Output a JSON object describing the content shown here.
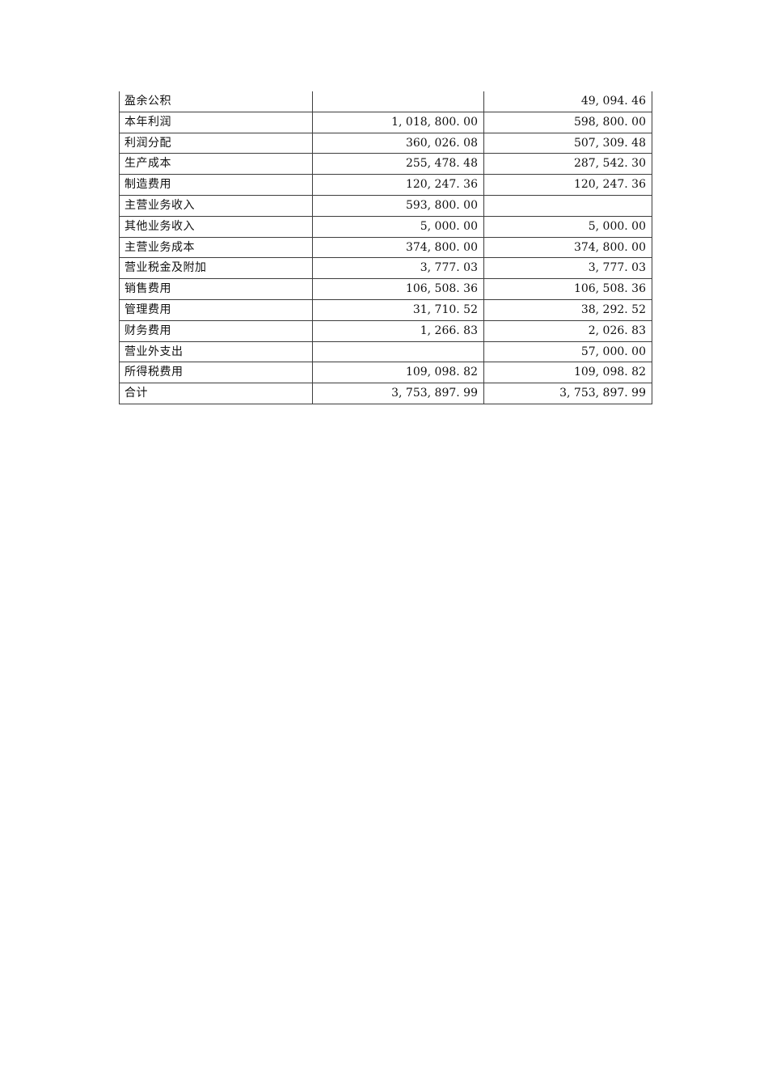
{
  "page": {
    "background_color": "#ffffff",
    "text_color": "#111111",
    "border_color": "#3d3d3d"
  },
  "table": {
    "description": "account-summary-table-continuation",
    "rows": [
      {
        "label": "盈余公积",
        "col1": "",
        "col2": "49, 094. 46"
      },
      {
        "label": "本年利润",
        "col1": "1, 018, 800. 00",
        "col2": "598, 800. 00"
      },
      {
        "label": "利润分配",
        "col1": "360, 026. 08",
        "col2": "507, 309. 48"
      },
      {
        "label": "生产成本",
        "col1": "255, 478. 48",
        "col2": "287, 542. 30"
      },
      {
        "label": "制造费用",
        "col1": "120, 247. 36",
        "col2": "120, 247. 36"
      },
      {
        "label": "主营业务收入",
        "col1": "593, 800. 00",
        "col2": ""
      },
      {
        "label": "其他业务收入",
        "col1": "5, 000. 00",
        "col2": "5, 000. 00"
      },
      {
        "label": "主营业务成本",
        "col1": "374, 800. 00",
        "col2": "374, 800. 00"
      },
      {
        "label": "营业税金及附加",
        "col1": "3, 777. 03",
        "col2": "3, 777. 03"
      },
      {
        "label": "销售费用",
        "col1": "106, 508. 36",
        "col2": "106, 508. 36"
      },
      {
        "label": "管理费用",
        "col1": "31, 710. 52",
        "col2": "38, 292. 52"
      },
      {
        "label": "财务费用",
        "col1": "1, 266. 83",
        "col2": "2, 026. 83"
      },
      {
        "label": "营业外支出",
        "col1": "",
        "col2": "57, 000. 00"
      },
      {
        "label": "所得税费用",
        "col1": "109, 098. 82",
        "col2": "109, 098. 82"
      },
      {
        "label": "合计",
        "col1": "3, 753, 897. 99",
        "col2": "3, 753, 897. 99"
      }
    ]
  }
}
